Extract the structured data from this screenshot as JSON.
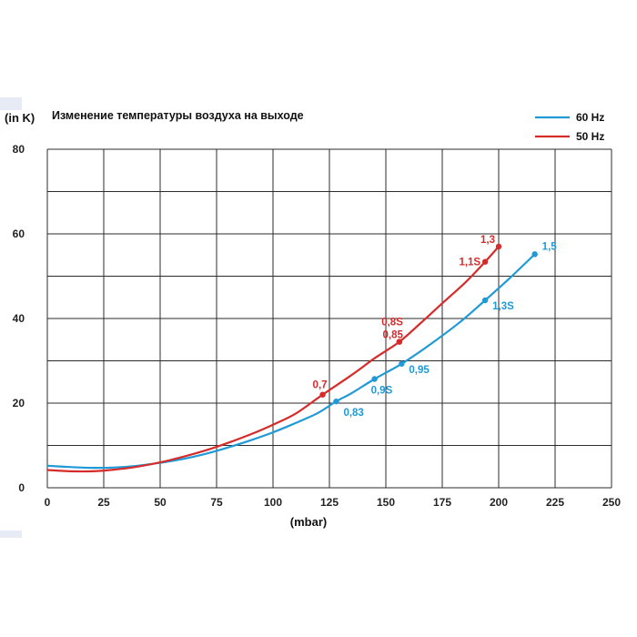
{
  "chart_data": {
    "type": "line",
    "title": "Изменение температуры воздуха на выходе",
    "ylabel": "(in K)",
    "xlabel": "(mbar)",
    "xlim": [
      0,
      250
    ],
    "ylim": [
      0,
      80
    ],
    "x_ticks": [
      "0",
      "25",
      "50",
      "75",
      "100",
      "125",
      "150",
      "175",
      "200",
      "225",
      "250"
    ],
    "y_ticks": [
      "0",
      "20",
      "40",
      "60",
      "80"
    ],
    "grid": true,
    "legend_position": "top-right",
    "series": [
      {
        "name": "60 Hz",
        "color": "#1f9ad6",
        "curve": [
          [
            0,
            5.2
          ],
          [
            10,
            4.9
          ],
          [
            20,
            4.7
          ],
          [
            30,
            4.8
          ],
          [
            40,
            5.2
          ],
          [
            50,
            5.9
          ],
          [
            60,
            6.8
          ],
          [
            70,
            8.0
          ],
          [
            80,
            9.5
          ],
          [
            90,
            11.2
          ],
          [
            100,
            13.1
          ],
          [
            110,
            15.3
          ],
          [
            120,
            17.7
          ],
          [
            128,
            20.4
          ],
          [
            135,
            22.4
          ],
          [
            145,
            25.7
          ],
          [
            157,
            29.3
          ],
          [
            170,
            34.0
          ],
          [
            183,
            39.2
          ],
          [
            194,
            44.3
          ],
          [
            205,
            49.6
          ],
          [
            216,
            55.2
          ]
        ],
        "points": [
          {
            "x": 128,
            "y": 20.4,
            "label": "0,83"
          },
          {
            "x": 145,
            "y": 25.7,
            "label": "0,9S"
          },
          {
            "x": 157,
            "y": 29.3,
            "label": "0,95"
          },
          {
            "x": 194,
            "y": 44.3,
            "label": "1,3S"
          },
          {
            "x": 216,
            "y": 55.2,
            "label": "1,5"
          }
        ]
      },
      {
        "name": "50 Hz",
        "color": "#d62b2b",
        "curve": [
          [
            0,
            4.2
          ],
          [
            10,
            3.9
          ],
          [
            20,
            3.9
          ],
          [
            30,
            4.3
          ],
          [
            40,
            5.0
          ],
          [
            50,
            6.0
          ],
          [
            60,
            7.3
          ],
          [
            70,
            8.8
          ],
          [
            80,
            10.6
          ],
          [
            90,
            12.6
          ],
          [
            100,
            14.9
          ],
          [
            110,
            17.5
          ],
          [
            122,
            22.0
          ],
          [
            135,
            26.7
          ],
          [
            145,
            30.6
          ],
          [
            156,
            34.5
          ],
          [
            165,
            38.7
          ],
          [
            175,
            43.6
          ],
          [
            185,
            48.4
          ],
          [
            194,
            53.4
          ],
          [
            200,
            57.0
          ]
        ],
        "points": [
          {
            "x": 122,
            "y": 22.0,
            "label": "0,7"
          },
          {
            "x": 156,
            "y": 34.5,
            "label": "0,8S"
          },
          {
            "x": 156,
            "y": 34.5,
            "label": "0,85"
          },
          {
            "x": 194,
            "y": 53.4,
            "label": "1,1S"
          },
          {
            "x": 200,
            "y": 57.0,
            "label": "1,3"
          }
        ]
      }
    ]
  }
}
